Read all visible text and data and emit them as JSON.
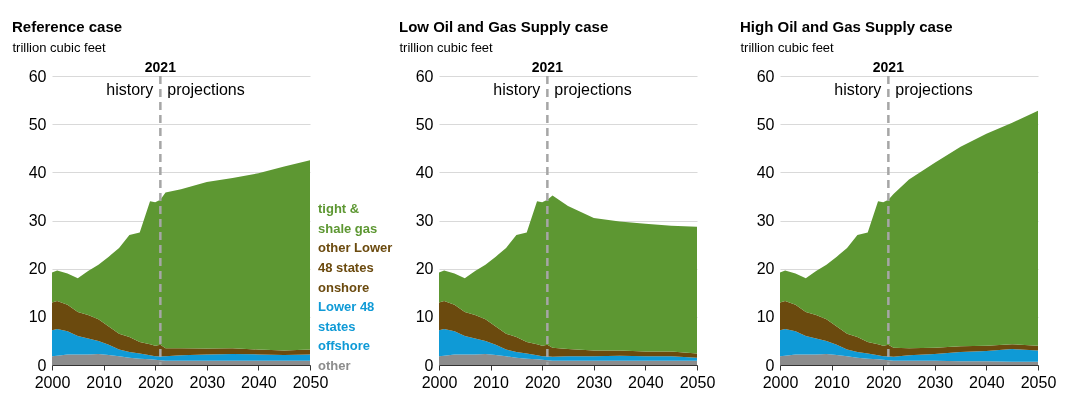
{
  "chart_data": [
    {
      "type": "area",
      "stacked": true,
      "title": "Reference case",
      "ylabel": "trillion cubic feet",
      "x": [
        2000,
        2001,
        2003,
        2005,
        2007,
        2009,
        2011,
        2013,
        2015,
        2017,
        2019,
        2020,
        2021,
        2022,
        2025,
        2030,
        2035,
        2040,
        2045,
        2050
      ],
      "xlim": [
        2000,
        2050
      ],
      "xticks": [
        2000,
        2010,
        2020,
        2030,
        2040,
        2050
      ],
      "ylim": [
        0,
        60
      ],
      "yticks": [
        0,
        10,
        20,
        30,
        40,
        50,
        60
      ],
      "grid": "y",
      "legend": "right",
      "series": [
        {
          "name": "other",
          "color": "#8c8c8c",
          "values": [
            1.8,
            1.9,
            2.2,
            2.2,
            2.2,
            2.3,
            2.1,
            1.8,
            1.5,
            1.3,
            1.2,
            1.1,
            1.0,
            0.9,
            0.9,
            0.9,
            0.9,
            0.9,
            0.9,
            0.9
          ]
        },
        {
          "name": "Lower 48 states offshore",
          "color": "#0f9ad6",
          "values": [
            5.4,
            5.6,
            4.8,
            3.8,
            3.3,
            2.7,
            2.1,
            1.4,
            1.2,
            1.1,
            0.8,
            0.7,
            0.8,
            0.9,
            1.1,
            1.3,
            1.4,
            1.3,
            1.2,
            1.3
          ]
        },
        {
          "name": "other Lower 48 states onshore",
          "color": "#6b4a0e",
          "values": [
            5.8,
            5.8,
            5.5,
            5.0,
            4.9,
            4.5,
            3.8,
            3.3,
            3.1,
            2.4,
            2.3,
            2.2,
            2.4,
            1.7,
            1.5,
            1.2,
            1.2,
            1.0,
            0.9,
            1.0
          ]
        },
        {
          "name": "tight & shale gas",
          "color": "#5d9732",
          "values": [
            6.2,
            6.3,
            6.5,
            7.0,
            9.1,
            11.3,
            14.5,
            17.8,
            21.2,
            22.7,
            29.7,
            29.8,
            30.1,
            32.3,
            33.0,
            34.6,
            35.3,
            36.6,
            38.2,
            39.3
          ]
        }
      ],
      "ref_lines": [
        {
          "axis": "x",
          "value": 2021,
          "label": "2021",
          "color": "#a6a6a6",
          "line_style": "dashed"
        }
      ],
      "annotations": [
        "history",
        "projections"
      ]
    },
    {
      "type": "area",
      "stacked": true,
      "title": "Low Oil and Gas Supply case",
      "ylabel": "trillion cubic feet",
      "x": [
        2000,
        2001,
        2003,
        2005,
        2007,
        2009,
        2011,
        2013,
        2015,
        2017,
        2019,
        2020,
        2021,
        2022,
        2025,
        2030,
        2035,
        2040,
        2045,
        2050
      ],
      "xlim": [
        2000,
        2050
      ],
      "xticks": [
        2000,
        2010,
        2020,
        2030,
        2040,
        2050
      ],
      "ylim": [
        0,
        60
      ],
      "yticks": [
        0,
        10,
        20,
        30,
        40,
        50,
        60
      ],
      "grid": "y",
      "series": [
        {
          "color": "#8c8c8c",
          "values": [
            1.8,
            1.9,
            2.2,
            2.2,
            2.2,
            2.3,
            2.1,
            1.8,
            1.5,
            1.3,
            1.2,
            1.1,
            1.0,
            0.9,
            0.9,
            0.9,
            0.9,
            0.9,
            0.9,
            0.9
          ]
        },
        {
          "color": "#0f9ad6",
          "values": [
            5.4,
            5.6,
            4.8,
            3.8,
            3.3,
            2.7,
            2.1,
            1.4,
            1.2,
            1.1,
            0.8,
            0.7,
            0.8,
            0.8,
            0.9,
            0.9,
            1.0,
            0.9,
            0.9,
            0.6
          ]
        },
        {
          "color": "#6b4a0e",
          "values": [
            5.8,
            5.8,
            5.5,
            5.0,
            4.9,
            4.5,
            3.8,
            3.3,
            3.1,
            2.4,
            2.3,
            2.2,
            2.4,
            1.9,
            1.5,
            1.2,
            1.1,
            1.0,
            1.0,
            0.9
          ]
        },
        {
          "color": "#5d9732",
          "values": [
            6.2,
            6.3,
            6.5,
            7.0,
            9.1,
            11.3,
            14.5,
            17.8,
            21.2,
            22.7,
            29.7,
            29.8,
            30.1,
            31.6,
            29.7,
            27.5,
            26.8,
            26.5,
            26.1,
            26.3
          ]
        }
      ],
      "ref_lines": [
        {
          "axis": "x",
          "value": 2021,
          "label": "2021",
          "color": "#a6a6a6",
          "line_style": "dashed"
        }
      ],
      "annotations": [
        "history",
        "projections"
      ]
    },
    {
      "type": "area",
      "stacked": true,
      "title": "High Oil and Gas Supply case",
      "ylabel": "trillion cubic feet",
      "x": [
        2000,
        2001,
        2003,
        2005,
        2007,
        2009,
        2011,
        2013,
        2015,
        2017,
        2019,
        2020,
        2021,
        2022,
        2025,
        2030,
        2035,
        2040,
        2045,
        2050
      ],
      "xlim": [
        2000,
        2050
      ],
      "xticks": [
        2000,
        2010,
        2020,
        2030,
        2040,
        2050
      ],
      "ylim": [
        0,
        60
      ],
      "yticks": [
        0,
        10,
        20,
        30,
        40,
        50,
        60
      ],
      "grid": "y",
      "series": [
        {
          "color": "#8c8c8c",
          "values": [
            1.8,
            1.9,
            2.2,
            2.2,
            2.2,
            2.3,
            2.1,
            1.8,
            1.5,
            1.3,
            1.2,
            1.1,
            1.0,
            0.9,
            0.9,
            0.9,
            0.8,
            0.8,
            0.7,
            0.7
          ]
        },
        {
          "color": "#0f9ad6",
          "values": [
            5.4,
            5.6,
            4.8,
            3.8,
            3.3,
            2.7,
            2.1,
            1.4,
            1.2,
            1.1,
            0.8,
            0.7,
            0.8,
            0.8,
            1.1,
            1.4,
            1.9,
            2.1,
            2.6,
            2.3
          ]
        },
        {
          "color": "#6b4a0e",
          "values": [
            5.8,
            5.8,
            5.5,
            5.0,
            4.9,
            4.5,
            3.8,
            3.3,
            3.1,
            2.4,
            2.3,
            2.2,
            2.4,
            1.9,
            1.5,
            1.3,
            1.2,
            1.1,
            1.0,
            1.0
          ]
        },
        {
          "color": "#5d9732",
          "values": [
            6.2,
            6.3,
            6.5,
            7.0,
            9.1,
            11.3,
            14.5,
            17.8,
            21.2,
            22.7,
            29.7,
            29.8,
            30.1,
            31.9,
            35.0,
            38.4,
            41.4,
            44.0,
            46.0,
            48.8
          ]
        }
      ],
      "ref_lines": [
        {
          "axis": "x",
          "value": 2021,
          "label": "2021",
          "color": "#a6a6a6",
          "line_style": "dashed"
        }
      ],
      "annotations": [
        "history",
        "projections"
      ]
    }
  ]
}
